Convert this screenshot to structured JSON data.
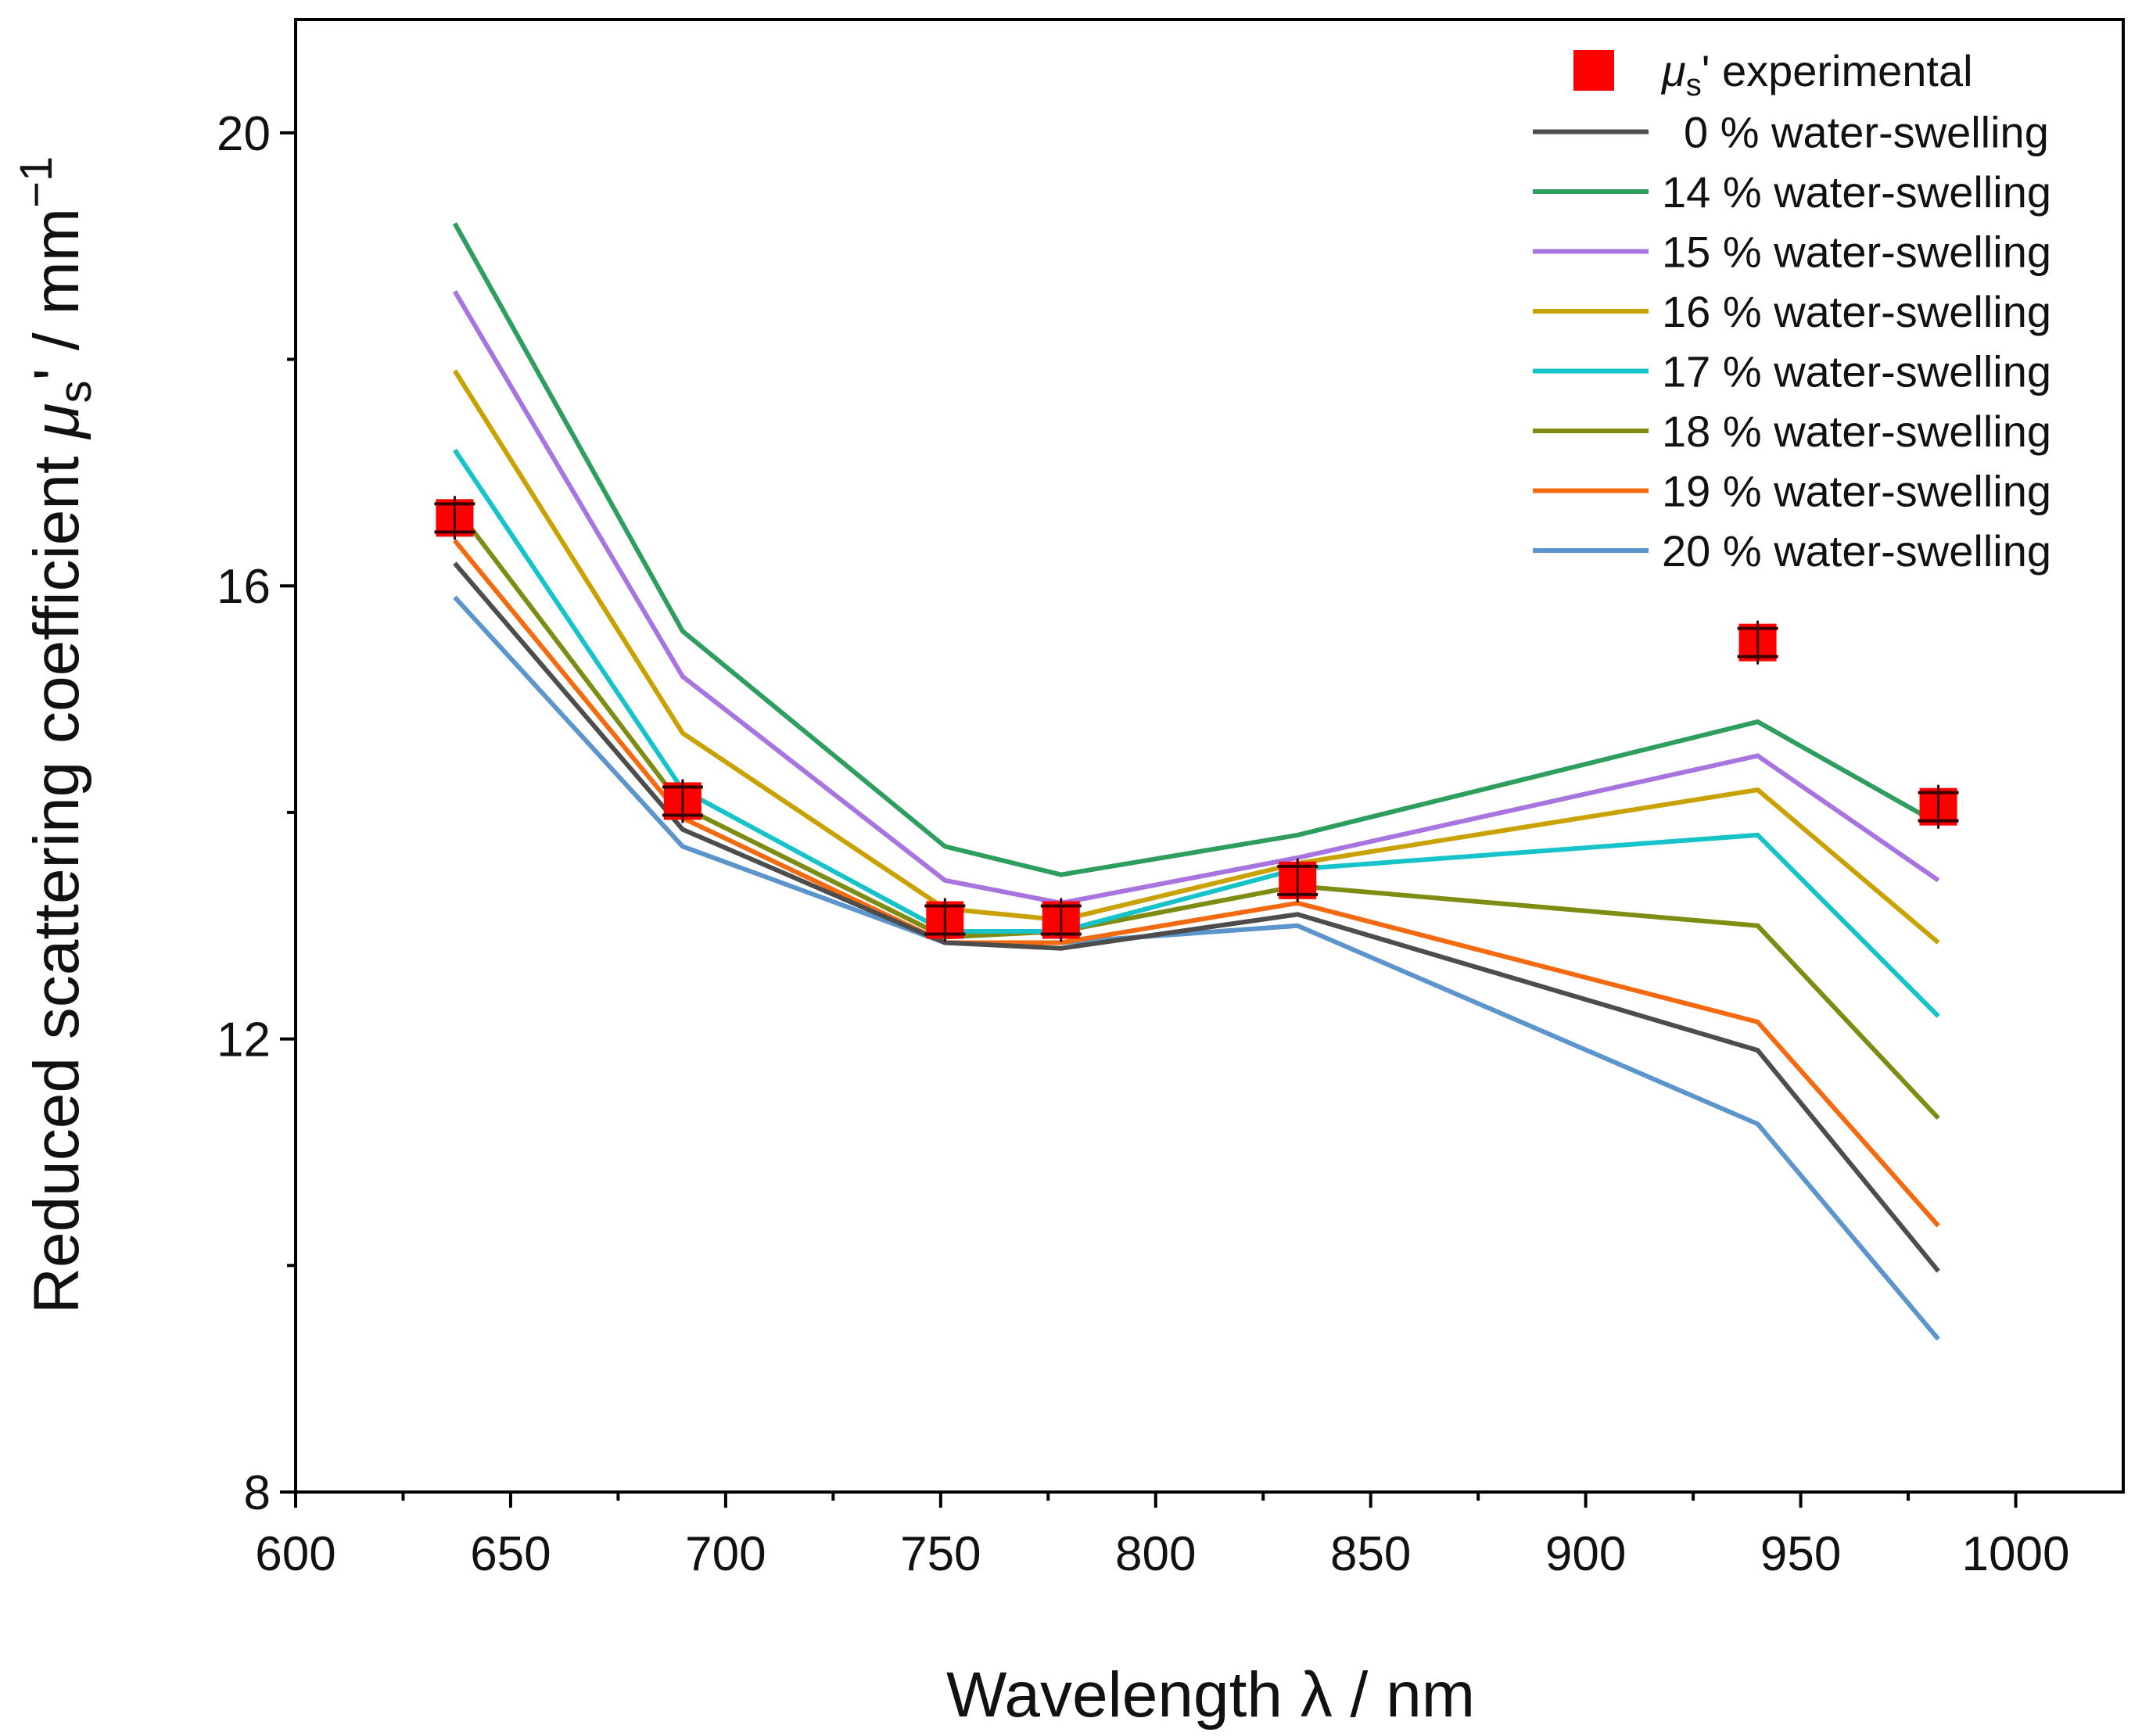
{
  "chart_data": {
    "type": "line",
    "xlabel": "Wavelength λ / nm",
    "ylabel": {
      "prefix": "Reduced scattering coefficient ",
      "symbol": "μ",
      "subscript": "s",
      "suffix": "' / mm",
      "superscript": "−1"
    },
    "xlim": [
      600,
      1025
    ],
    "ylim": [
      8,
      21
    ],
    "xticks": [
      600,
      650,
      700,
      750,
      800,
      850,
      900,
      950,
      1000
    ],
    "yticks": [
      8,
      12,
      16,
      20
    ],
    "x": [
      637,
      690,
      751,
      778,
      833,
      940,
      982
    ],
    "experimental": {
      "legend": {
        "symbol": "μ",
        "subscript": "s",
        "text": "' experimental"
      },
      "color": "#ff0000",
      "values": [
        16.6,
        14.1,
        13.05,
        13.05,
        13.4,
        15.5,
        14.05
      ]
    },
    "series": [
      {
        "name": "0 % water-swelling",
        "color": "#4d4d4d",
        "values": [
          16.2,
          13.85,
          12.85,
          12.8,
          13.1,
          11.9,
          9.95
        ]
      },
      {
        "name": "14 % water-swelling",
        "color": "#2e9e5f",
        "values": [
          19.2,
          15.6,
          13.7,
          13.45,
          13.8,
          14.8,
          13.9
        ]
      },
      {
        "name": "15 % water-swelling",
        "color": "#a874e0",
        "values": [
          18.6,
          15.2,
          13.4,
          13.2,
          13.6,
          14.5,
          13.4
        ]
      },
      {
        "name": "16 % water-swelling",
        "color": "#c9a100",
        "values": [
          17.9,
          14.7,
          13.15,
          13.05,
          13.55,
          14.2,
          12.85
        ]
      },
      {
        "name": "17 % water-swelling",
        "color": "#16c3c9",
        "values": [
          17.2,
          14.2,
          12.95,
          12.95,
          13.5,
          13.8,
          12.2
        ]
      },
      {
        "name": "18 % water-swelling",
        "color": "#7e8c14",
        "values": [
          16.7,
          14.05,
          12.9,
          12.95,
          13.35,
          13.0,
          11.3
        ]
      },
      {
        "name": "19 % water-swelling",
        "color": "#f46a10",
        "values": [
          16.4,
          13.95,
          12.85,
          12.85,
          13.2,
          12.15,
          10.35
        ]
      },
      {
        "name": "20 % water-swelling",
        "color": "#5b95cc",
        "values": [
          15.9,
          13.7,
          12.85,
          12.85,
          13.0,
          11.25,
          9.35
        ]
      }
    ],
    "legend_position": "top-right",
    "grid": false
  }
}
